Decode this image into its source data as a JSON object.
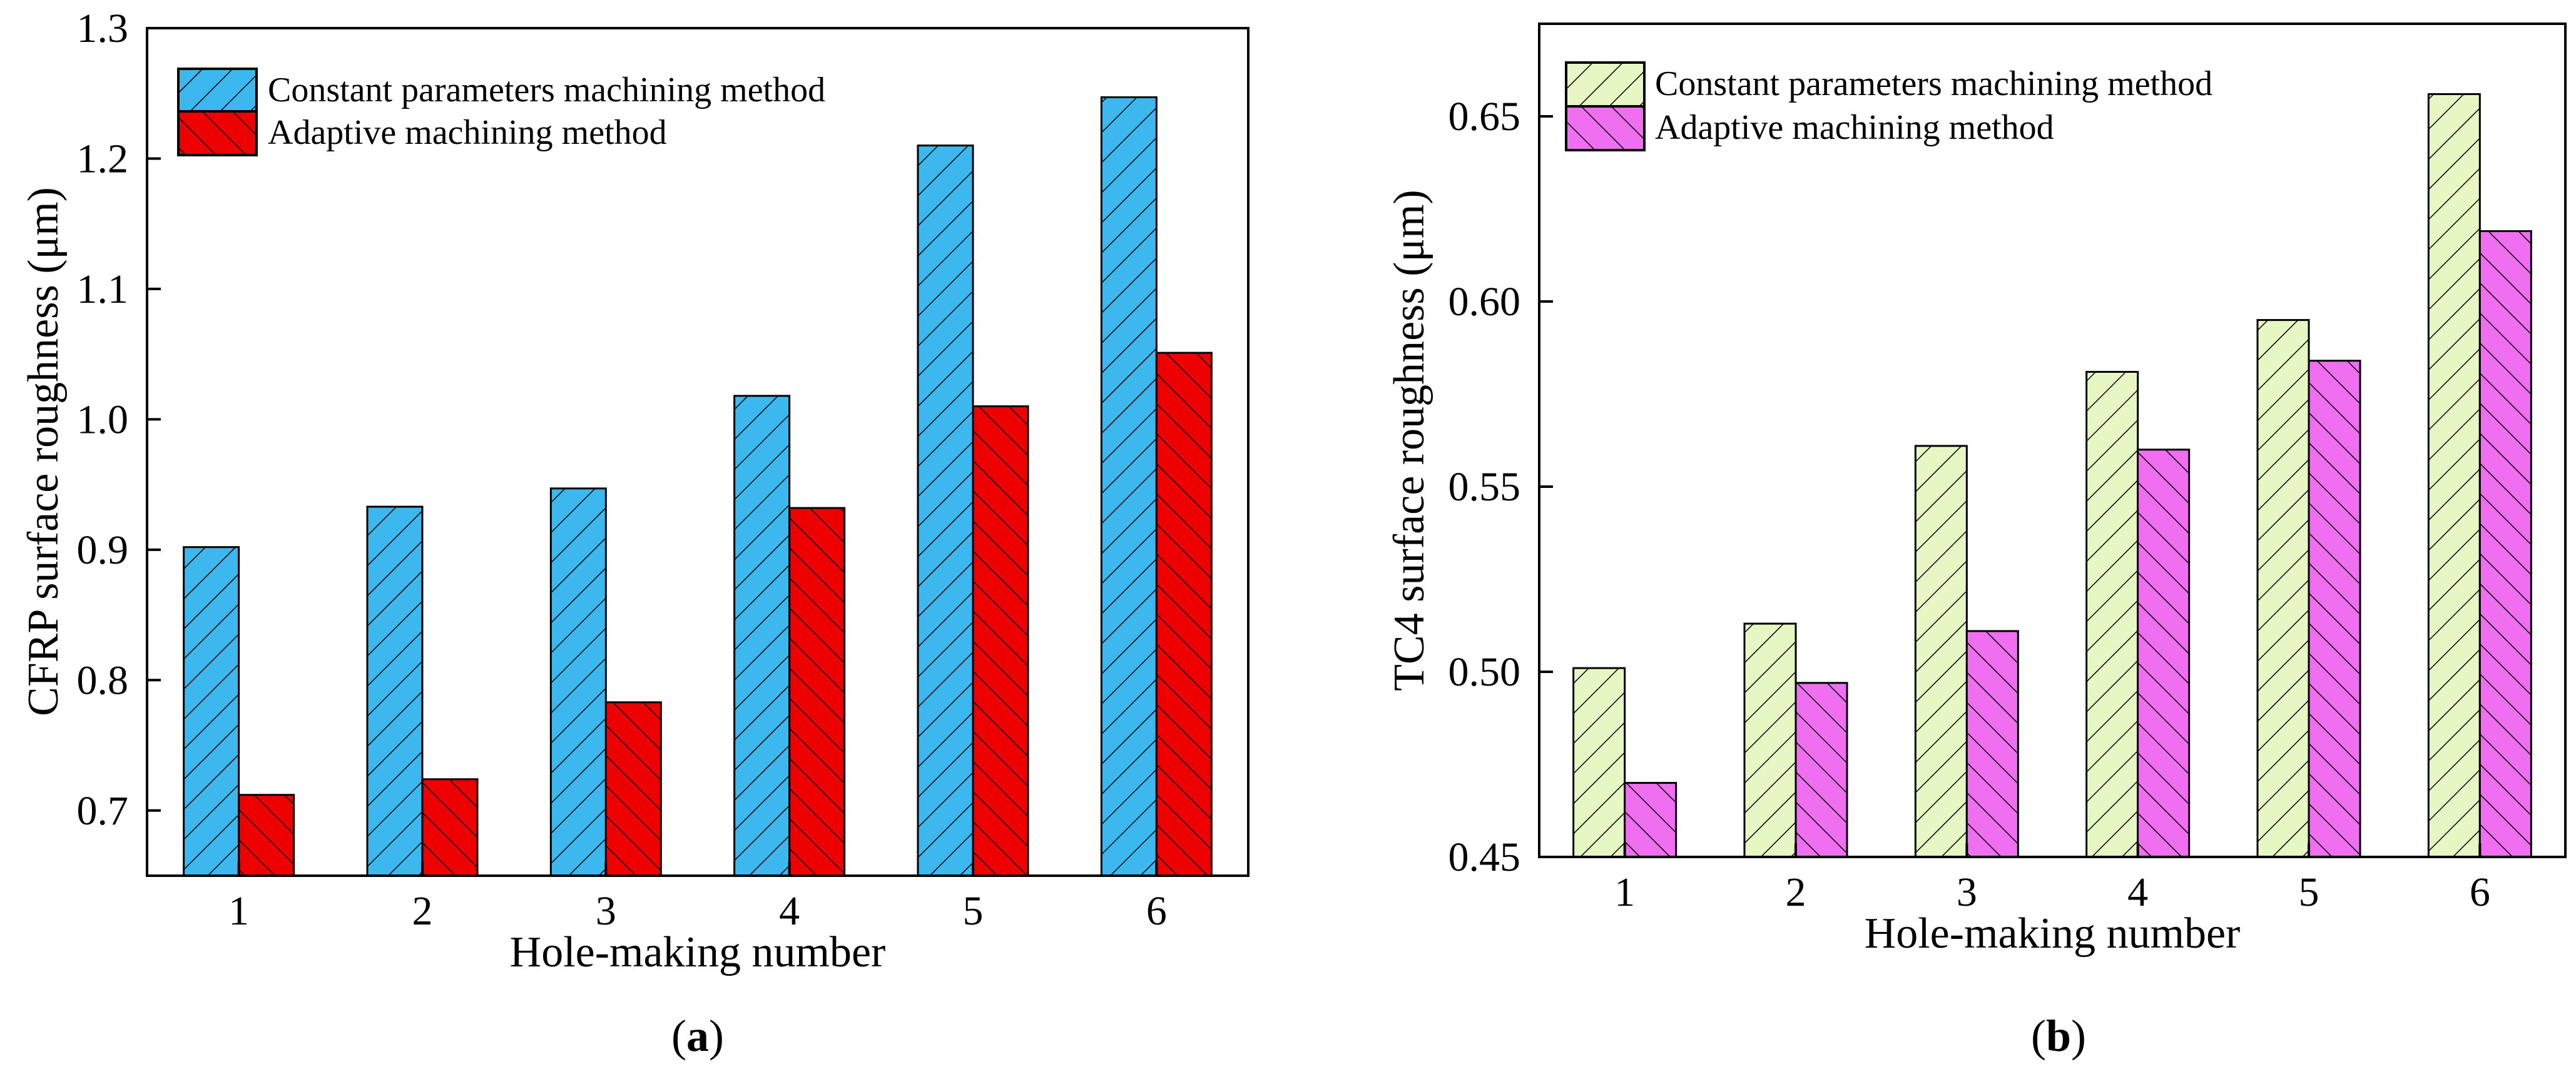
{
  "chart_data": [
    {
      "type": "bar",
      "panel_label": "a",
      "xlabel": "Hole-making number",
      "ylabel": "CFRP surface roughness (μm)",
      "categories": [
        "1",
        "2",
        "3",
        "4",
        "5",
        "6"
      ],
      "ylim": [
        0.65,
        1.3
      ],
      "yticks": [
        "0.7",
        "0.8",
        "0.9",
        "1.0",
        "1.1",
        "1.2",
        "1.3"
      ],
      "legend_position": "top-left",
      "series": [
        {
          "name": "Constant parameters machining method",
          "values": [
            0.902,
            0.933,
            0.947,
            1.018,
            1.21,
            1.247
          ],
          "color": "#3db8ee",
          "hatch": "forward"
        },
        {
          "name": "Adaptive machining method",
          "values": [
            0.712,
            0.724,
            0.783,
            0.932,
            1.01,
            1.051
          ],
          "color": "#ee0000",
          "hatch": "backward"
        }
      ]
    },
    {
      "type": "bar",
      "panel_label": "b",
      "xlabel": "Hole-making number",
      "ylabel": "TC4 surface roughness (μm)",
      "categories": [
        "1",
        "2",
        "3",
        "4",
        "5",
        "6"
      ],
      "ylim": [
        0.45,
        0.675
      ],
      "yticks": [
        "0.45",
        "0.50",
        "0.55",
        "0.60",
        "0.65"
      ],
      "legend_position": "top-left",
      "series": [
        {
          "name": "Constant parameters machining method",
          "values": [
            0.501,
            0.513,
            0.561,
            0.581,
            0.595,
            0.656
          ],
          "color": "#e6f7c3",
          "hatch": "forward"
        },
        {
          "name": "Adaptive machining method",
          "values": [
            0.47,
            0.497,
            0.511,
            0.56,
            0.584,
            0.619
          ],
          "color": "#f06ef0",
          "hatch": "backward"
        }
      ]
    }
  ]
}
